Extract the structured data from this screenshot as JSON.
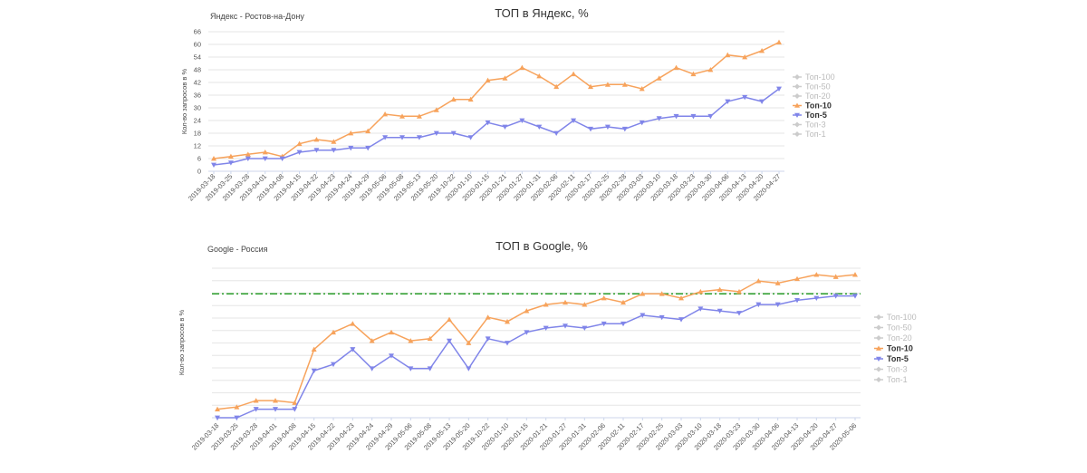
{
  "chart_data": [
    {
      "type": "line",
      "subtitle": "Яндекс - Ростов-на-Дону",
      "title": "ТОП в Яндекс, %",
      "ylabel": "Кол-во запросов в %",
      "xlabel": "",
      "ylim": [
        0,
        66
      ],
      "yticks": [
        "0",
        "6",
        "12",
        "18",
        "24",
        "30",
        "36",
        "42",
        "48",
        "54",
        "60",
        "66"
      ],
      "grid": true,
      "legend_position": "right",
      "categories": [
        "2019-03-18",
        "2019-03-25",
        "2019-03-28",
        "2019-04-01",
        "2019-04-08",
        "2019-04-15",
        "2019-04-22",
        "2019-04-23",
        "2019-04-24",
        "2019-04-29",
        "2019-05-06",
        "2019-05-08",
        "2019-05-13",
        "2019-05-20",
        "2019-10-22",
        "2020-01-10",
        "2020-01-15",
        "2020-01-21",
        "2020-01-27",
        "2020-01-31",
        "2020-02-06",
        "2020-02-11",
        "2020-02-17",
        "2020-02-25",
        "2020-02-28",
        "2020-03-03",
        "2020-03-10",
        "2020-03-18",
        "2020-03-23",
        "2020-03-30",
        "2020-04-06",
        "2020-04-13",
        "2020-04-20",
        "2020-04-27"
      ],
      "series": [
        {
          "name": "Топ-10",
          "color": "#f7a35c",
          "marker": "triangle-up",
          "values": [
            6,
            7,
            8,
            9,
            7,
            13,
            15,
            14,
            18,
            19,
            27,
            26,
            26,
            29,
            34,
            34,
            43,
            44,
            49,
            45,
            40,
            46,
            40,
            41,
            41,
            39,
            44,
            49,
            46,
            48,
            55,
            54,
            57,
            61
          ]
        },
        {
          "name": "Топ-5",
          "color": "#8085e9",
          "marker": "triangle-down",
          "values": [
            3,
            4,
            6,
            6,
            6,
            9,
            10,
            10,
            11,
            11,
            16,
            16,
            16,
            18,
            18,
            16,
            23,
            21,
            24,
            21,
            18,
            24,
            20,
            21,
            20,
            23,
            25,
            26,
            26,
            26,
            33,
            35,
            33,
            39
          ]
        }
      ],
      "legend": [
        {
          "name": "Топ-100",
          "active": false
        },
        {
          "name": "Топ-50",
          "active": false
        },
        {
          "name": "Топ-20",
          "active": false
        },
        {
          "name": "Топ-10",
          "active": true,
          "color": "#f7a35c",
          "marker": "triangle-up"
        },
        {
          "name": "Топ-5",
          "active": true,
          "color": "#8085e9",
          "marker": "triangle-down"
        },
        {
          "name": "Топ-3",
          "active": false
        },
        {
          "name": "Топ-1",
          "active": false
        }
      ]
    },
    {
      "type": "line",
      "subtitle": "Google - Россия",
      "title": "ТОП в Google, %",
      "ylabel": "Кол-во запросов в %",
      "xlabel": "",
      "ylim": [
        0,
        70
      ],
      "grid": true,
      "legend_position": "right",
      "reference_line": {
        "value": 58,
        "color": "#2ca02c",
        "style": "dash-dot"
      },
      "categories": [
        "2019-03-18",
        "2019-03-25",
        "2019-03-28",
        "2019-04-01",
        "2019-04-08",
        "2019-04-15",
        "2019-04-22",
        "2019-04-23",
        "2019-04-24",
        "2019-04-29",
        "2019-05-06",
        "2019-05-08",
        "2019-05-13",
        "2019-05-20",
        "2019-10-22",
        "2020-01-10",
        "2020-01-15",
        "2020-01-21",
        "2020-01-27",
        "2020-01-31",
        "2020-02-06",
        "2020-02-11",
        "2020-02-17",
        "2020-02-25",
        "2020-03-03",
        "2020-03-10",
        "2020-03-18",
        "2020-03-23",
        "2020-03-30",
        "2020-04-06",
        "2020-04-13",
        "2020-04-20",
        "2020-04-27",
        "2020-05-06"
      ],
      "series": [
        {
          "name": "Топ-10",
          "color": "#f7a35c",
          "marker": "triangle-up",
          "values": [
            4,
            5,
            8,
            8,
            7,
            32,
            40,
            44,
            36,
            40,
            36,
            37,
            46,
            35,
            47,
            45,
            50,
            53,
            54,
            53,
            56,
            54,
            58,
            58,
            56,
            59,
            60,
            59,
            64,
            63,
            65,
            67,
            66,
            67
          ]
        },
        {
          "name": "Топ-5",
          "color": "#8085e9",
          "marker": "triangle-down",
          "values": [
            0,
            0,
            4,
            4,
            4,
            22,
            25,
            32,
            23,
            29,
            23,
            23,
            36,
            23,
            37,
            35,
            40,
            42,
            43,
            42,
            44,
            44,
            48,
            47,
            46,
            51,
            50,
            49,
            53,
            53,
            55,
            56,
            57,
            57
          ]
        }
      ],
      "legend": [
        {
          "name": "Топ-100",
          "active": false
        },
        {
          "name": "Топ-50",
          "active": false
        },
        {
          "name": "Топ-20",
          "active": false
        },
        {
          "name": "Топ-10",
          "active": true,
          "color": "#f7a35c",
          "marker": "triangle-up"
        },
        {
          "name": "Топ-5",
          "active": true,
          "color": "#8085e9",
          "marker": "triangle-down"
        },
        {
          "name": "Топ-3",
          "active": false
        },
        {
          "name": "Топ-1",
          "active": false
        }
      ]
    }
  ]
}
